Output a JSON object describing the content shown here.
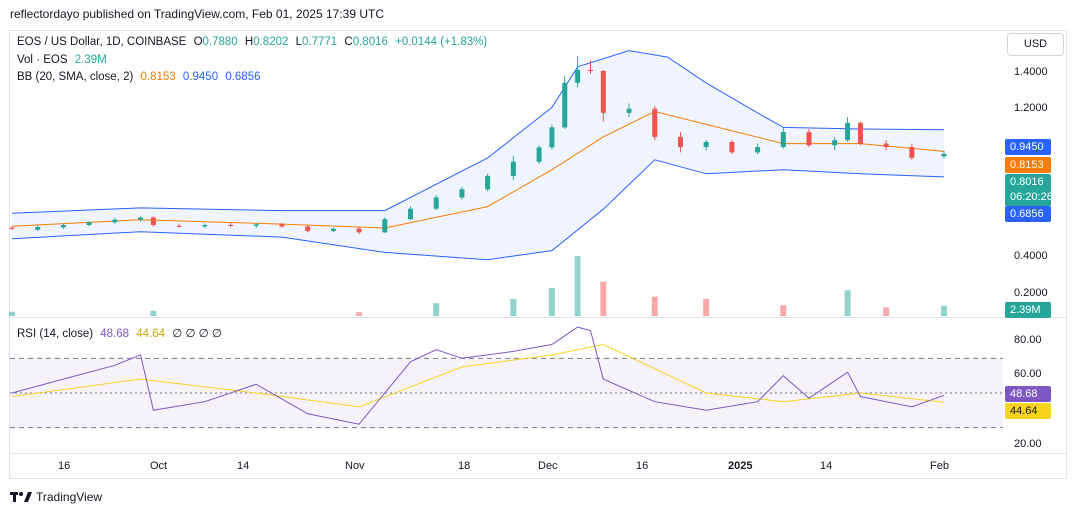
{
  "header": {
    "publisher_line": "reflectordayo published on TradingView.com, Feb 01, 2025 17:39 UTC"
  },
  "legend": {
    "symbol": "EOS / US Dollar, 1D, COINBASE",
    "open_label": "O",
    "open": "0.7880",
    "high_label": "H",
    "high": "0.8202",
    "low_label": "L",
    "low": "0.7771",
    "close_label": "C",
    "close": "0.8016",
    "change": "+0.0144 (+1.83%)",
    "vol_label": "Vol · EOS",
    "vol_value": "2.39M",
    "bb_label": "BB (20, SMA, close, 2)",
    "bb_basis": "0.8153",
    "bb_upper": "0.9450",
    "bb_lower": "0.6856",
    "rsi_label": "RSI (14, close)",
    "rsi_value": "48.68",
    "rsi_ma": "44.64",
    "rsi_blanks": "∅ ∅ ∅ ∅"
  },
  "currency": "USD",
  "price_axis": [
    "1.4000",
    "1.2000",
    "0.4000",
    "0.2000"
  ],
  "rsi_axis": [
    "80.00",
    "60.00",
    "20.00"
  ],
  "price_tags": {
    "upper": "0.9450",
    "basis": "0.8153",
    "last": "0.8016",
    "countdown": "06:20:26",
    "lower": "0.6856",
    "volume": "2.39M",
    "rsi": "48.68",
    "rsi_ma": "44.64"
  },
  "colors": {
    "up": "#26a69a",
    "down": "#ef5350",
    "bb_band": "#2962ff",
    "bb_basis": "#f57c00",
    "rsi": "#7e57c2",
    "rsi_ma": "#f7d41e"
  },
  "time_axis": [
    "16",
    "Oct",
    "14",
    "Nov",
    "18",
    "Dec",
    "16",
    "2025",
    "14",
    "Feb"
  ],
  "footer": {
    "brand": "TradingView"
  },
  "chart_data": [
    {
      "type": "candlestick",
      "title": "EOS / US Dollar, 1D, COINBASE",
      "y_scale": "log",
      "ylim": [
        0.3,
        1.75
      ],
      "x_range": [
        "2024-09-09",
        "2025-02-01"
      ],
      "ohlc": [
        {
          "date": "2024-09-09",
          "o": 0.485,
          "h": 0.49,
          "l": 0.478,
          "c": 0.481
        },
        {
          "date": "2024-09-13",
          "o": 0.478,
          "h": 0.492,
          "l": 0.474,
          "c": 0.487
        },
        {
          "date": "2024-09-17",
          "o": 0.486,
          "h": 0.499,
          "l": 0.481,
          "c": 0.494
        },
        {
          "date": "2024-09-21",
          "o": 0.494,
          "h": 0.507,
          "l": 0.49,
          "c": 0.503
        },
        {
          "date": "2024-09-25",
          "o": 0.503,
          "h": 0.518,
          "l": 0.498,
          "c": 0.512
        },
        {
          "date": "2024-09-29",
          "o": 0.512,
          "h": 0.524,
          "l": 0.505,
          "c": 0.52
        },
        {
          "date": "2024-10-01",
          "o": 0.52,
          "h": 0.524,
          "l": 0.488,
          "c": 0.494
        },
        {
          "date": "2024-10-05",
          "o": 0.491,
          "h": 0.498,
          "l": 0.485,
          "c": 0.489
        },
        {
          "date": "2024-10-09",
          "o": 0.489,
          "h": 0.499,
          "l": 0.484,
          "c": 0.494
        },
        {
          "date": "2024-10-13",
          "o": 0.494,
          "h": 0.5,
          "l": 0.486,
          "c": 0.491
        },
        {
          "date": "2024-10-17",
          "o": 0.491,
          "h": 0.501,
          "l": 0.484,
          "c": 0.496
        },
        {
          "date": "2024-10-21",
          "o": 0.496,
          "h": 0.501,
          "l": 0.485,
          "c": 0.489
        },
        {
          "date": "2024-10-25",
          "o": 0.489,
          "h": 0.494,
          "l": 0.47,
          "c": 0.474
        },
        {
          "date": "2024-10-29",
          "o": 0.474,
          "h": 0.486,
          "l": 0.47,
          "c": 0.482
        },
        {
          "date": "2024-11-02",
          "o": 0.482,
          "h": 0.486,
          "l": 0.465,
          "c": 0.47
        },
        {
          "date": "2024-11-06",
          "o": 0.47,
          "h": 0.52,
          "l": 0.468,
          "c": 0.514
        },
        {
          "date": "2024-11-10",
          "o": 0.514,
          "h": 0.56,
          "l": 0.51,
          "c": 0.552
        },
        {
          "date": "2024-11-14",
          "o": 0.552,
          "h": 0.605,
          "l": 0.546,
          "c": 0.596
        },
        {
          "date": "2024-11-18",
          "o": 0.596,
          "h": 0.64,
          "l": 0.588,
          "c": 0.63
        },
        {
          "date": "2024-11-22",
          "o": 0.63,
          "h": 0.7,
          "l": 0.622,
          "c": 0.69
        },
        {
          "date": "2024-11-26",
          "o": 0.69,
          "h": 0.79,
          "l": 0.672,
          "c": 0.76
        },
        {
          "date": "2024-11-30",
          "o": 0.76,
          "h": 0.85,
          "l": 0.748,
          "c": 0.838
        },
        {
          "date": "2024-12-02",
          "o": 0.838,
          "h": 0.98,
          "l": 0.826,
          "c": 0.96
        },
        {
          "date": "2024-12-04",
          "o": 0.96,
          "h": 1.36,
          "l": 0.95,
          "c": 1.3
        },
        {
          "date": "2024-12-06",
          "o": 1.3,
          "h": 1.56,
          "l": 1.26,
          "c": 1.42
        },
        {
          "date": "2024-12-08",
          "o": 1.42,
          "h": 1.52,
          "l": 1.38,
          "c": 1.41
        },
        {
          "date": "2024-12-10",
          "o": 1.41,
          "h": 1.42,
          "l": 1.0,
          "c": 1.06
        },
        {
          "date": "2024-12-14",
          "o": 1.06,
          "h": 1.13,
          "l": 1.03,
          "c": 1.09
        },
        {
          "date": "2024-12-18",
          "o": 1.09,
          "h": 1.11,
          "l": 0.88,
          "c": 0.9
        },
        {
          "date": "2024-12-22",
          "o": 0.9,
          "h": 0.93,
          "l": 0.81,
          "c": 0.84
        },
        {
          "date": "2024-12-26",
          "o": 0.84,
          "h": 0.88,
          "l": 0.82,
          "c": 0.87
        },
        {
          "date": "2024-12-30",
          "o": 0.87,
          "h": 0.88,
          "l": 0.8,
          "c": 0.81
        },
        {
          "date": "2025-01-03",
          "o": 0.81,
          "h": 0.86,
          "l": 0.8,
          "c": 0.84
        },
        {
          "date": "2025-01-07",
          "o": 0.84,
          "h": 0.96,
          "l": 0.83,
          "c": 0.93
        },
        {
          "date": "2025-01-11",
          "o": 0.93,
          "h": 0.95,
          "l": 0.84,
          "c": 0.85
        },
        {
          "date": "2025-01-15",
          "o": 0.85,
          "h": 0.9,
          "l": 0.82,
          "c": 0.88
        },
        {
          "date": "2025-01-17",
          "o": 0.88,
          "h": 1.03,
          "l": 0.87,
          "c": 0.99
        },
        {
          "date": "2025-01-19",
          "o": 0.99,
          "h": 1.0,
          "l": 0.85,
          "c": 0.86
        },
        {
          "date": "2025-01-23",
          "o": 0.86,
          "h": 0.88,
          "l": 0.82,
          "c": 0.84
        },
        {
          "date": "2025-01-27",
          "o": 0.84,
          "h": 0.86,
          "l": 0.77,
          "c": 0.78
        },
        {
          "date": "2025-02-01",
          "o": 0.788,
          "h": 0.8202,
          "l": 0.7771,
          "c": 0.8016
        }
      ],
      "bb_upper": [
        {
          "date": "2024-09-09",
          "v": 0.535
        },
        {
          "date": "2024-09-29",
          "v": 0.555
        },
        {
          "date": "2024-10-21",
          "v": 0.545
        },
        {
          "date": "2024-11-06",
          "v": 0.545
        },
        {
          "date": "2024-11-22",
          "v": 0.78
        },
        {
          "date": "2024-12-02",
          "v": 1.1
        },
        {
          "date": "2024-12-06",
          "v": 1.45
        },
        {
          "date": "2024-12-14",
          "v": 1.62
        },
        {
          "date": "2024-12-20",
          "v": 1.55
        },
        {
          "date": "2024-12-26",
          "v": 1.3
        },
        {
          "date": "2025-01-03",
          "v": 1.06
        },
        {
          "date": "2025-01-07",
          "v": 0.96
        },
        {
          "date": "2025-01-19",
          "v": 0.95
        },
        {
          "date": "2025-02-01",
          "v": 0.945
        }
      ],
      "bb_basis": [
        {
          "date": "2024-09-09",
          "v": 0.49
        },
        {
          "date": "2024-09-29",
          "v": 0.512
        },
        {
          "date": "2024-10-21",
          "v": 0.497
        },
        {
          "date": "2024-11-06",
          "v": 0.484
        },
        {
          "date": "2024-11-22",
          "v": 0.56
        },
        {
          "date": "2024-12-02",
          "v": 0.72
        },
        {
          "date": "2024-12-10",
          "v": 0.9
        },
        {
          "date": "2024-12-18",
          "v": 1.07
        },
        {
          "date": "2024-12-26",
          "v": 0.98
        },
        {
          "date": "2025-01-07",
          "v": 0.86
        },
        {
          "date": "2025-01-19",
          "v": 0.86
        },
        {
          "date": "2025-02-01",
          "v": 0.8153
        }
      ],
      "bb_lower": [
        {
          "date": "2024-09-09",
          "v": 0.45
        },
        {
          "date": "2024-09-29",
          "v": 0.472
        },
        {
          "date": "2024-10-21",
          "v": 0.455
        },
        {
          "date": "2024-11-06",
          "v": 0.41
        },
        {
          "date": "2024-11-22",
          "v": 0.39
        },
        {
          "date": "2024-12-02",
          "v": 0.415
        },
        {
          "date": "2024-12-10",
          "v": 0.55
        },
        {
          "date": "2024-12-18",
          "v": 0.77
        },
        {
          "date": "2024-12-26",
          "v": 0.7
        },
        {
          "date": "2025-01-07",
          "v": 0.72
        },
        {
          "date": "2025-01-19",
          "v": 0.7
        },
        {
          "date": "2025-02-01",
          "v": 0.6856
        }
      ]
    },
    {
      "type": "bar",
      "title": "Vol · EOS",
      "values_m": [
        {
          "date": "2024-09-09",
          "v": 1.0
        },
        {
          "date": "2024-10-01",
          "v": 1.2
        },
        {
          "date": "2024-11-02",
          "v": 0.9
        },
        {
          "date": "2024-11-14",
          "v": 3.0
        },
        {
          "date": "2024-11-26",
          "v": 4.0
        },
        {
          "date": "2024-12-02",
          "v": 6.5
        },
        {
          "date": "2024-12-06",
          "v": 14.0
        },
        {
          "date": "2024-12-10",
          "v": 8.0
        },
        {
          "date": "2024-12-18",
          "v": 4.5
        },
        {
          "date": "2024-12-26",
          "v": 4.0
        },
        {
          "date": "2025-01-07",
          "v": 2.5
        },
        {
          "date": "2025-01-17",
          "v": 6.0
        },
        {
          "date": "2025-01-23",
          "v": 2.0
        },
        {
          "date": "2025-02-01",
          "v": 2.39
        }
      ]
    },
    {
      "type": "line",
      "title": "RSI (14, close)",
      "ylim": [
        15,
        95
      ],
      "rsi": [
        {
          "date": "2024-09-09",
          "v": 50
        },
        {
          "date": "2024-09-17",
          "v": 58
        },
        {
          "date": "2024-09-25",
          "v": 66
        },
        {
          "date": "2024-09-29",
          "v": 72
        },
        {
          "date": "2024-10-01",
          "v": 40
        },
        {
          "date": "2024-10-09",
          "v": 45
        },
        {
          "date": "2024-10-17",
          "v": 55
        },
        {
          "date": "2024-10-25",
          "v": 38
        },
        {
          "date": "2024-11-02",
          "v": 32
        },
        {
          "date": "2024-11-06",
          "v": 50
        },
        {
          "date": "2024-11-10",
          "v": 68
        },
        {
          "date": "2024-11-14",
          "v": 75
        },
        {
          "date": "2024-11-18",
          "v": 70
        },
        {
          "date": "2024-11-26",
          "v": 74
        },
        {
          "date": "2024-12-02",
          "v": 78
        },
        {
          "date": "2024-12-06",
          "v": 88
        },
        {
          "date": "2024-12-08",
          "v": 86
        },
        {
          "date": "2024-12-10",
          "v": 58
        },
        {
          "date": "2024-12-18",
          "v": 45
        },
        {
          "date": "2024-12-26",
          "v": 40
        },
        {
          "date": "2025-01-03",
          "v": 45
        },
        {
          "date": "2025-01-07",
          "v": 60
        },
        {
          "date": "2025-01-11",
          "v": 47
        },
        {
          "date": "2025-01-17",
          "v": 62
        },
        {
          "date": "2025-01-19",
          "v": 48
        },
        {
          "date": "2025-01-27",
          "v": 42
        },
        {
          "date": "2025-02-01",
          "v": 48.68
        }
      ],
      "rsi_ma": [
        {
          "date": "2024-09-09",
          "v": 48
        },
        {
          "date": "2024-09-29",
          "v": 58
        },
        {
          "date": "2024-10-17",
          "v": 50
        },
        {
          "date": "2024-11-02",
          "v": 42
        },
        {
          "date": "2024-11-18",
          "v": 65
        },
        {
          "date": "2024-12-02",
          "v": 72
        },
        {
          "date": "2024-12-10",
          "v": 78
        },
        {
          "date": "2024-12-26",
          "v": 50
        },
        {
          "date": "2025-01-07",
          "v": 45
        },
        {
          "date": "2025-01-19",
          "v": 50
        },
        {
          "date": "2025-02-01",
          "v": 44.64
        }
      ],
      "levels": [
        70,
        50,
        30
      ]
    }
  ]
}
